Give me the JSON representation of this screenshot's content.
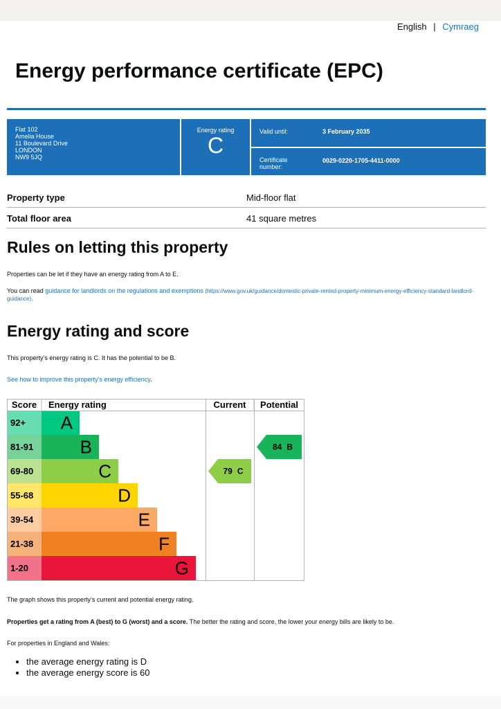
{
  "header": {
    "languages": [
      "English",
      "Cymraeg"
    ],
    "title": "Energy performance certificate (EPC)"
  },
  "summary": {
    "address": [
      "Flat 102",
      "Amelia House",
      "11 Boulevard Drive",
      "LONDON",
      "NW9 5JQ"
    ],
    "rating_label": "Energy rating",
    "rating": "C",
    "valid_until_label": "Valid until:",
    "valid_until": "3 February 2035",
    "certificate_label": "Certificate number:",
    "certificate_number": "0029-0220-1705-4411-0000"
  },
  "property": {
    "rows": [
      [
        "Property type",
        "Mid-floor flat"
      ],
      [
        "Total floor area",
        "41 square metres"
      ]
    ]
  },
  "letting": {
    "heading": "Rules on letting this property",
    "paragraph": "Properties can be let if they have an energy rating from A to E.",
    "read_before": "You can read ",
    "link": "guidance for landlords on the regulations and exemptions",
    "link_url": "(https://www.gov.uk/guidance/domestic-private-rented-property-minimum-energy-efficiency-standard-landlord-guidance)",
    "read_after": "."
  },
  "rating_section": {
    "heading": "Energy rating and score",
    "paragraph": "This property’s energy rating is C. It has the potential to be B.",
    "link": "See how to improve this property’s energy efficiency",
    "link_after": "."
  },
  "rating_chart": {
    "headers": [
      "Score",
      "Energy rating",
      "Current",
      "Potential"
    ],
    "bands": [
      {
        "score": "92+",
        "letter": "A",
        "color": "#00c781"
      },
      {
        "score": "81-91",
        "letter": "B",
        "color": "#19b459"
      },
      {
        "score": "69-80",
        "letter": "C",
        "color": "#8dce46"
      },
      {
        "score": "55-68",
        "letter": "D",
        "color": "#ffd500"
      },
      {
        "score": "39-54",
        "letter": "E",
        "color": "#fcaa65"
      },
      {
        "score": "21-38",
        "letter": "F",
        "color": "#ef8023"
      },
      {
        "score": "1-20",
        "letter": "G",
        "color": "#e9153b"
      }
    ],
    "current": {
      "score": 79,
      "letter": "C"
    },
    "potential": {
      "score": 84,
      "letter": "B"
    }
  },
  "notes": {
    "graph_note": "The graph shows this property’s current and potential energy rating.",
    "bold_note": "Properties get a rating from A (best) to G (worst) and a score.",
    "rest_note": " The better the rating and score, the lower your energy bills are likely to be.",
    "average_intro": "For properties in England and Wales:",
    "bullets": [
      "the average energy rating is D",
      "the average energy score is 60"
    ]
  }
}
